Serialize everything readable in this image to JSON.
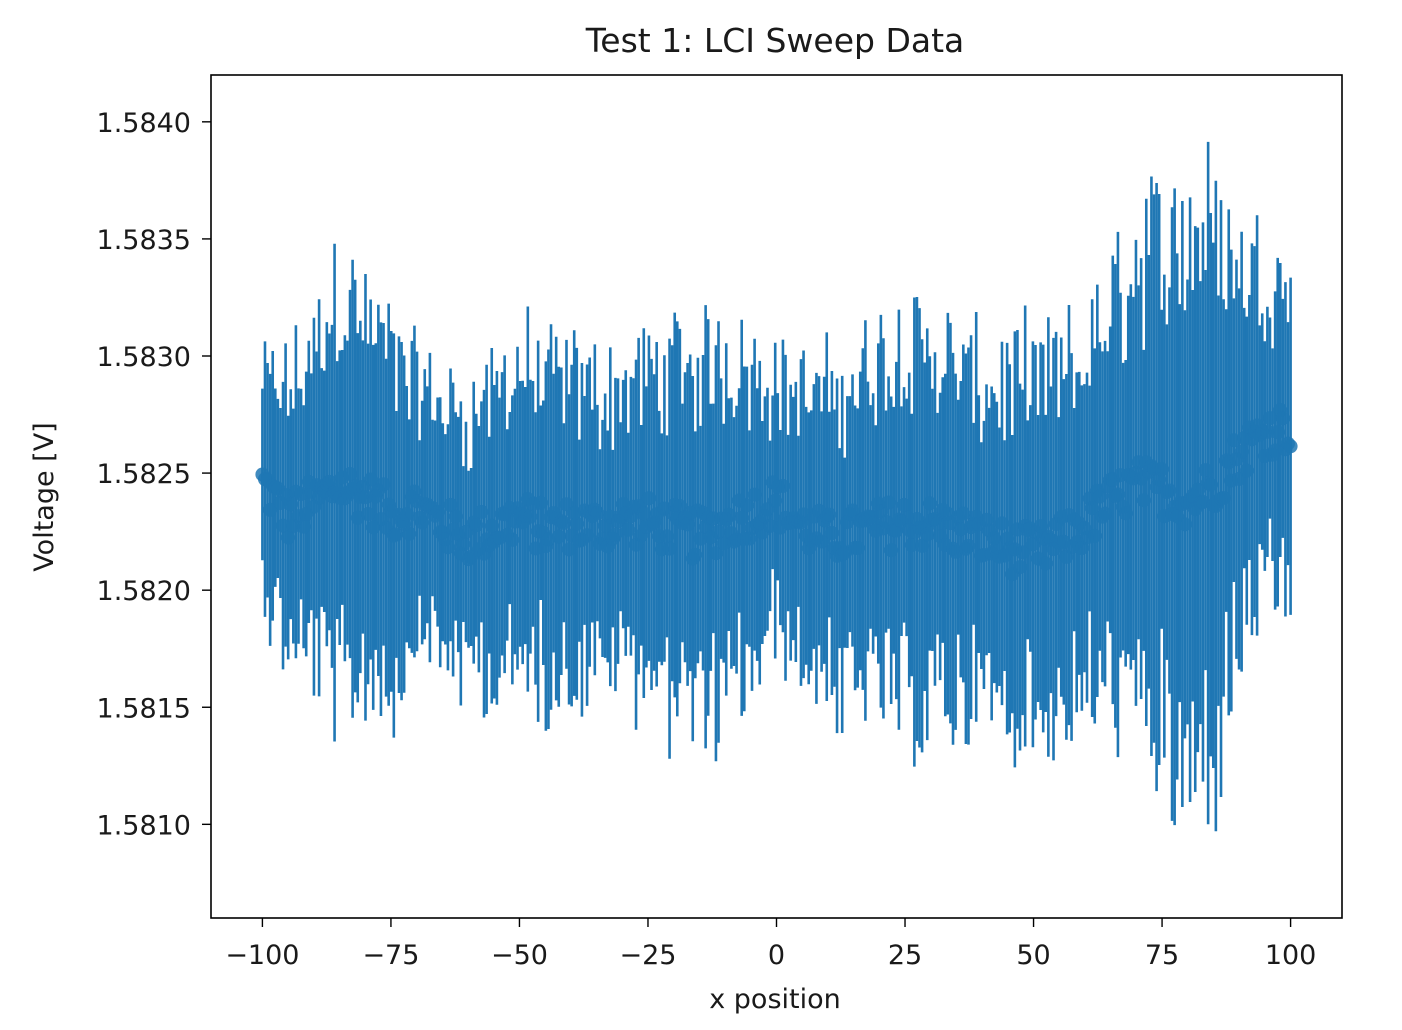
{
  "chart_data": {
    "type": "scatter",
    "title": "Test 1: LCI Sweep Data",
    "xlabel": "x position",
    "ylabel": "Voltage [V]",
    "xlim": [
      -110,
      110
    ],
    "ylim": [
      1.5806,
      1.5842
    ],
    "xticks": [
      -100,
      -75,
      -50,
      -25,
      0,
      25,
      50,
      75,
      100
    ],
    "xtick_labels": [
      "−100",
      "−75",
      "−50",
      "−25",
      "0",
      "25",
      "50",
      "75",
      "100"
    ],
    "yticks": [
      1.581,
      1.5815,
      1.582,
      1.5825,
      1.583,
      1.5835,
      1.584
    ],
    "ytick_labels": [
      "1.5810",
      "1.5815",
      "1.5820",
      "1.5825",
      "1.5830",
      "1.5835",
      "1.5840"
    ],
    "grid": false,
    "legend": "none",
    "series": [
      {
        "color": "#1f77b4",
        "x_start": -100,
        "x_end": 100,
        "n_points": 400,
        "mean_y": [
          [
            -100,
            1.58246
          ],
          [
            -95,
            1.58231
          ],
          [
            -90,
            1.58237
          ],
          [
            -85,
            1.58245
          ],
          [
            -80,
            1.5824
          ],
          [
            -75,
            1.58232
          ],
          [
            -70,
            1.58236
          ],
          [
            -65,
            1.58228
          ],
          [
            -60,
            1.58222
          ],
          [
            -55,
            1.58226
          ],
          [
            -50,
            1.58231
          ],
          [
            -45,
            1.58226
          ],
          [
            -40,
            1.58228
          ],
          [
            -35,
            1.58227
          ],
          [
            -30,
            1.5823
          ],
          [
            -25,
            1.58229
          ],
          [
            -20,
            1.58226
          ],
          [
            -15,
            1.58223
          ],
          [
            -10,
            1.58228
          ],
          [
            -5,
            1.58233
          ],
          [
            0,
            1.58238
          ],
          [
            5,
            1.58227
          ],
          [
            10,
            1.58222
          ],
          [
            15,
            1.58224
          ],
          [
            20,
            1.58227
          ],
          [
            25,
            1.58229
          ],
          [
            30,
            1.58228
          ],
          [
            35,
            1.58225
          ],
          [
            40,
            1.58222
          ],
          [
            45,
            1.58218
          ],
          [
            50,
            1.58216
          ],
          [
            55,
            1.5822
          ],
          [
            60,
            1.58228
          ],
          [
            65,
            1.58238
          ],
          [
            70,
            1.58245
          ],
          [
            75,
            1.58243
          ],
          [
            80,
            1.58238
          ],
          [
            85,
            1.58245
          ],
          [
            90,
            1.58258
          ],
          [
            95,
            1.58268
          ],
          [
            100,
            1.5827
          ]
        ],
        "err_half_width": [
          [
            -100,
            0.0005
          ],
          [
            -90,
            0.00075
          ],
          [
            -85,
            0.001
          ],
          [
            -80,
            0.00085
          ],
          [
            -75,
            0.0008
          ],
          [
            -70,
            0.0006
          ],
          [
            -60,
            0.0006
          ],
          [
            -50,
            0.00075
          ],
          [
            -40,
            0.0007
          ],
          [
            -30,
            0.00065
          ],
          [
            -20,
            0.0008
          ],
          [
            -10,
            0.00085
          ],
          [
            0,
            0.0006
          ],
          [
            10,
            0.0007
          ],
          [
            20,
            0.0008
          ],
          [
            25,
            0.0009
          ],
          [
            30,
            0.00085
          ],
          [
            40,
            0.00075
          ],
          [
            50,
            0.00085
          ],
          [
            60,
            0.0008
          ],
          [
            70,
            0.0011
          ],
          [
            80,
            0.00135
          ],
          [
            85,
            0.0013
          ],
          [
            90,
            0.0009
          ],
          [
            100,
            0.0007
          ]
        ]
      }
    ]
  }
}
